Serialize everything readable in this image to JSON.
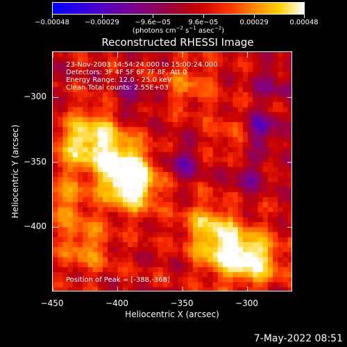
{
  "colorbar": {
    "tick_labels": [
      "−0.00048",
      "−0.00029",
      "−9.6e−05",
      "9.6e−05",
      "0.00029",
      "0.00048"
    ],
    "tick_values": [
      -0.00048,
      -0.00029,
      -9.6e-05,
      9.6e-05,
      0.00029,
      0.00048
    ],
    "unit_prefix": "(photons cm",
    "unit_sup1": "−2",
    "unit_mid1": " s",
    "unit_sup2": "−1",
    "unit_mid2": " asec",
    "unit_sup3": "−2",
    "unit_suffix": ")",
    "colors": [
      "#0000ff",
      "#4a00cc",
      "#7a008e",
      "#9a0040",
      "#c60000",
      "#ff3300",
      "#ff8400",
      "#ffd000",
      "#ffffff"
    ]
  },
  "chart_data": {
    "type": "heatmap",
    "title": "Reconstructed RHESSI Image",
    "xlabel": "Heliocentric X (arcsec)",
    "ylabel": "Heliocentric Y (arcsec)",
    "xlim": [
      -450,
      -265
    ],
    "ylim": [
      -450,
      -265
    ],
    "x_ticks": [
      -450,
      -400,
      -350,
      -300
    ],
    "x_tick_labels": [
      "−450",
      "−400",
      "−350",
      "−300"
    ],
    "y_ticks": [
      -400,
      -350,
      -300
    ],
    "y_tick_labels": [
      "−400",
      "−350",
      "−300"
    ],
    "value_range": [
      -0.00048,
      0.00048
    ],
    "peak_position": [
      -388,
      -368
    ],
    "hotspots": [
      {
        "x": -388,
        "y": -368,
        "value": 0.00048
      },
      {
        "x": -398,
        "y": -352,
        "value": 0.00042
      },
      {
        "x": -430,
        "y": -338,
        "value": 0.0003
      },
      {
        "x": -415,
        "y": -325,
        "value": 0.00026
      },
      {
        "x": -315,
        "y": -420,
        "value": 0.0004
      },
      {
        "x": -292,
        "y": -425,
        "value": 0.00036
      },
      {
        "x": -330,
        "y": -400,
        "value": 0.0003
      },
      {
        "x": -425,
        "y": -415,
        "value": 0.00024
      },
      {
        "x": -440,
        "y": -380,
        "value": 0.00022
      },
      {
        "x": -345,
        "y": -290,
        "value": 0.00018
      },
      {
        "x": -310,
        "y": -330,
        "value": 0.00014
      }
    ],
    "coldspots": [
      {
        "x": -290,
        "y": -325,
        "value": -0.0003
      },
      {
        "x": -350,
        "y": -350,
        "value": -0.00022
      },
      {
        "x": -300,
        "y": -360,
        "value": -0.0002
      },
      {
        "x": -390,
        "y": -300,
        "value": -0.00018
      },
      {
        "x": -280,
        "y": -290,
        "value": -0.00016
      }
    ],
    "annotations": [
      "23-Nov-2003 14:54:24.000 to 15:00:24.000",
      "Detectors: 3F 4F 5F 6F 7F 8F, Att 0",
      "Energy Range: 12.0 - 25.0 keV",
      "Clean    Total counts: 2.55E+03",
      "Position of Peak = [-388,-368]"
    ]
  },
  "footer": {
    "timestamp": "7-May-2022 08:51"
  }
}
